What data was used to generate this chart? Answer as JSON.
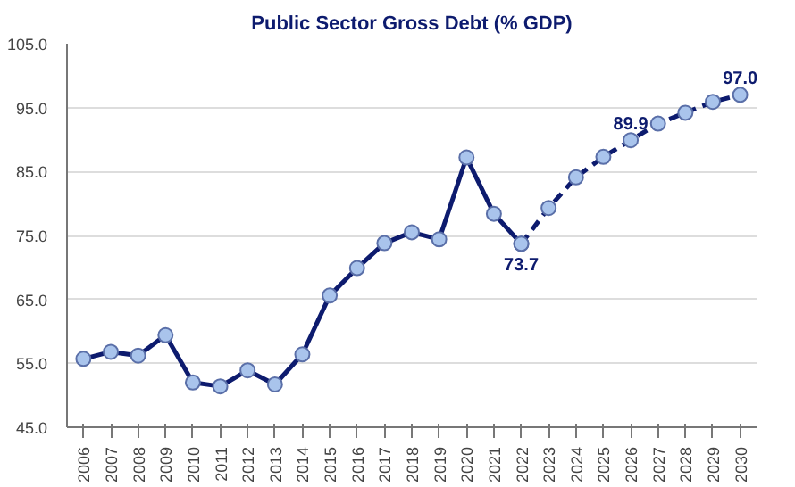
{
  "chart_data": {
    "type": "line",
    "title": "Public Sector Gross Debt (% GDP)",
    "categories": [
      "2006",
      "2007",
      "2008",
      "2009",
      "2010",
      "2011",
      "2012",
      "2013",
      "2014",
      "2015",
      "2016",
      "2017",
      "2018",
      "2019",
      "2020",
      "2021",
      "2022",
      "2023",
      "2024",
      "2025",
      "2026",
      "2027",
      "2028",
      "2029",
      "2030"
    ],
    "series": [
      {
        "color": "#0d1b6e",
        "line_style": "solid",
        "values": [
          55.7,
          56.8,
          56.2,
          59.4,
          52.0,
          51.4,
          53.9,
          51.7,
          56.4,
          65.6,
          69.9,
          73.8,
          75.5,
          74.4,
          87.2,
          78.4,
          73.7,
          null,
          null,
          null,
          null,
          null,
          null,
          null,
          null
        ],
        "value_labels": [
          null,
          null,
          null,
          null,
          null,
          null,
          null,
          null,
          null,
          null,
          null,
          null,
          null,
          null,
          null,
          null,
          "73.7",
          null,
          null,
          null,
          null,
          null,
          null,
          null,
          null
        ]
      },
      {
        "color": "#0d1b6e",
        "line_style": "dashed",
        "values": [
          null,
          null,
          null,
          null,
          null,
          null,
          null,
          null,
          null,
          null,
          null,
          null,
          null,
          null,
          null,
          null,
          73.7,
          79.3,
          84.1,
          87.3,
          89.9,
          92.5,
          94.2,
          95.9,
          97.0
        ],
        "value_labels": [
          null,
          null,
          null,
          null,
          null,
          null,
          null,
          null,
          null,
          null,
          null,
          null,
          null,
          null,
          null,
          null,
          null,
          null,
          null,
          null,
          "89.9",
          null,
          null,
          null,
          "97.0"
        ]
      }
    ],
    "ylim": [
      45,
      105
    ],
    "yticks": [
      {
        "value": 45,
        "label": "45.0"
      },
      {
        "value": 55,
        "label": "55.0"
      },
      {
        "value": 65,
        "label": "65.0"
      },
      {
        "value": 75,
        "label": "75.0"
      },
      {
        "value": 85,
        "label": "85.0"
      },
      {
        "value": 95,
        "label": "95.0"
      },
      {
        "value": 105,
        "label": "105.0"
      }
    ],
    "grid": "y",
    "marker": "circle"
  }
}
